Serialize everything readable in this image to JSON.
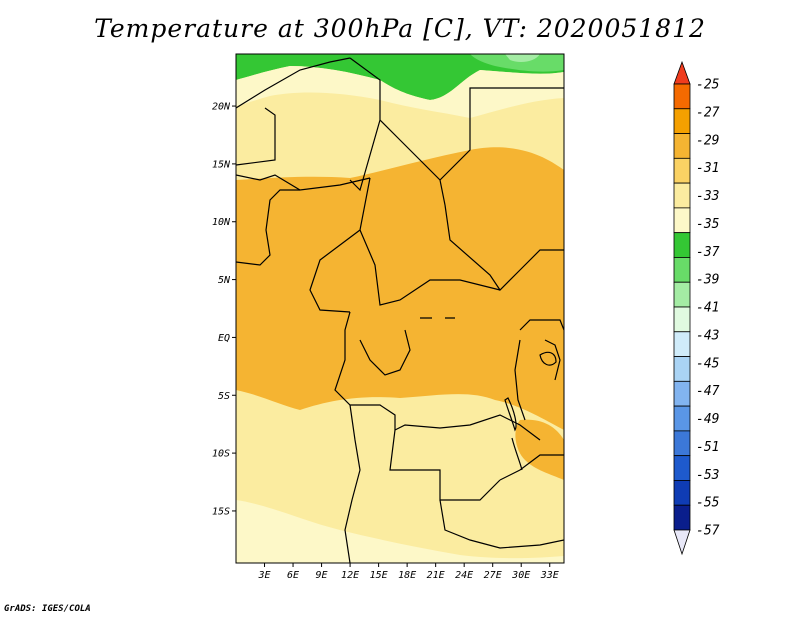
{
  "title": "Temperature at 300hPa [C], VT: 2020051812",
  "credit": "GrADS: IGES/COLA",
  "map": {
    "lat_labels": [
      "20N",
      "15N",
      "10N",
      "5N",
      "EQ",
      "5S",
      "10S",
      "15S"
    ],
    "lon_labels": [
      "3E",
      "6E",
      "9E",
      "12E",
      "15E",
      "18E",
      "21E",
      "24E",
      "27E",
      "30E",
      "33E"
    ],
    "lon_range": [
      0,
      34.5
    ],
    "lat_range": [
      -19.5,
      24.5
    ]
  },
  "colorbar": {
    "labels": [
      "-25",
      "-27",
      "-29",
      "-31",
      "-33",
      "-35",
      "-37",
      "-39",
      "-41",
      "-43",
      "-45",
      "-47",
      "-49",
      "-51",
      "-53",
      "-55",
      "-57"
    ],
    "colors": [
      "#f03c1e",
      "#f56a00",
      "#f5a000",
      "#f5b432",
      "#fad264",
      "#fbeca0",
      "#fdf8c8",
      "#34c734",
      "#68dc68",
      "#a4eca4",
      "#e0fae0",
      "#d0ecfa",
      "#aad4f5",
      "#82b4f0",
      "#5a96e6",
      "#3c78d8",
      "#1e5acd",
      "#0f3cb4",
      "#0a1e8c",
      "#e8e8f8"
    ],
    "top_arrow_color": "#f03c1e",
    "bottom_arrow_color": "#e8e8f8"
  },
  "field_colors": {
    "t_minus_29": "#f5b432",
    "t_minus_31": "#fad264",
    "t_minus_33": "#fbeca0",
    "t_minus_35": "#fdf8c8",
    "t_minus_37": "#34c734",
    "t_minus_39": "#68dc68",
    "t_minus_41": "#a4eca4"
  }
}
